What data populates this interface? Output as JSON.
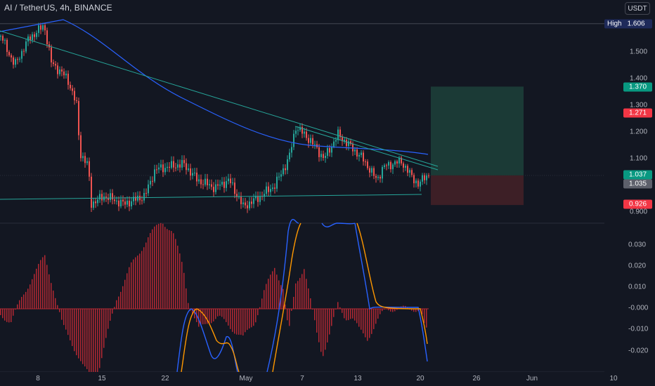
{
  "header": {
    "symbol_title": "AI / TetherUS, 4h, BINANCE",
    "currency_button": "USDT"
  },
  "price_axis": {
    "ticks": [
      "1.500",
      "1.400",
      "1.300",
      "1.200",
      "1.100",
      "0.900"
    ],
    "high_label": "High",
    "high_value": "1.606",
    "target_price": "1.370",
    "entry_price": "1.271",
    "last_price": "1.037",
    "prev_close": "1.035",
    "stop_price": "0.926"
  },
  "indicator_axis": {
    "ticks": [
      "0.030",
      "0.020",
      "0.010",
      "-0.000",
      "-0.010",
      "-0.020"
    ]
  },
  "time_axis": {
    "ticks": [
      "8",
      "15",
      "22",
      "May",
      "7",
      "13",
      "20",
      "26",
      "Jun",
      "10"
    ]
  },
  "colors": {
    "background": "#131722",
    "candle_up": "#26a69a",
    "candle_down": "#ef5350",
    "ma_line": "#2962ff",
    "trendline": "#26a69a",
    "target_zone": "#1b3a36",
    "stop_zone": "#3d1f26",
    "badge_green": "#089981",
    "badge_red": "#f23645",
    "macd_fast": "#2962ff",
    "macd_slow": "#ff9800",
    "histogram": "#b22833"
  }
}
